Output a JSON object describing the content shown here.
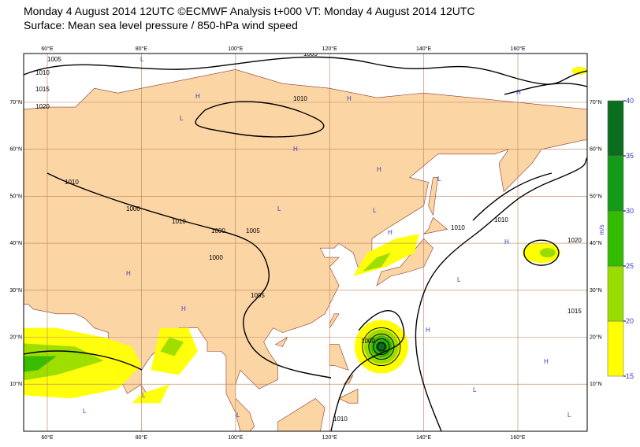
{
  "header": {
    "title": "Monday 4 August 2014 12UTC ©ECMWF Analysis t+000 VT: Monday 4 August 2014 12UTC",
    "subtitle": "Surface: Mean sea level pressure / 850-hPa wind speed"
  },
  "map": {
    "lon_labels": [
      "60°E",
      "80°E",
      "100°E",
      "120°E",
      "140°E",
      "160°E"
    ],
    "lat_labels": [
      "70°N",
      "60°N",
      "50°N",
      "40°N",
      "30°N",
      "20°N",
      "10°N"
    ],
    "isobar_labels": [
      "1005",
      "1010",
      "1015",
      "1020",
      "1005",
      "1010",
      "1010",
      "1000",
      "1005",
      "1000",
      "1010",
      "1000",
      "1005",
      "1010",
      "1020",
      "1015",
      "1010",
      "1000",
      "1010"
    ],
    "centers": [
      "L",
      "H",
      "L",
      "H",
      "L",
      "H",
      "H",
      "L",
      "H",
      "L",
      "H",
      "H",
      "L",
      "H",
      "L",
      "L",
      "H",
      "H",
      "L",
      "H",
      "L",
      "L"
    ]
  },
  "colorbar": {
    "ticks": [
      15,
      20,
      25,
      30,
      35,
      40
    ],
    "colors": [
      "#ffff00",
      "#99dd00",
      "#33bb00",
      "#129a18",
      "#0a6e1e"
    ],
    "unit": "m/s"
  }
}
